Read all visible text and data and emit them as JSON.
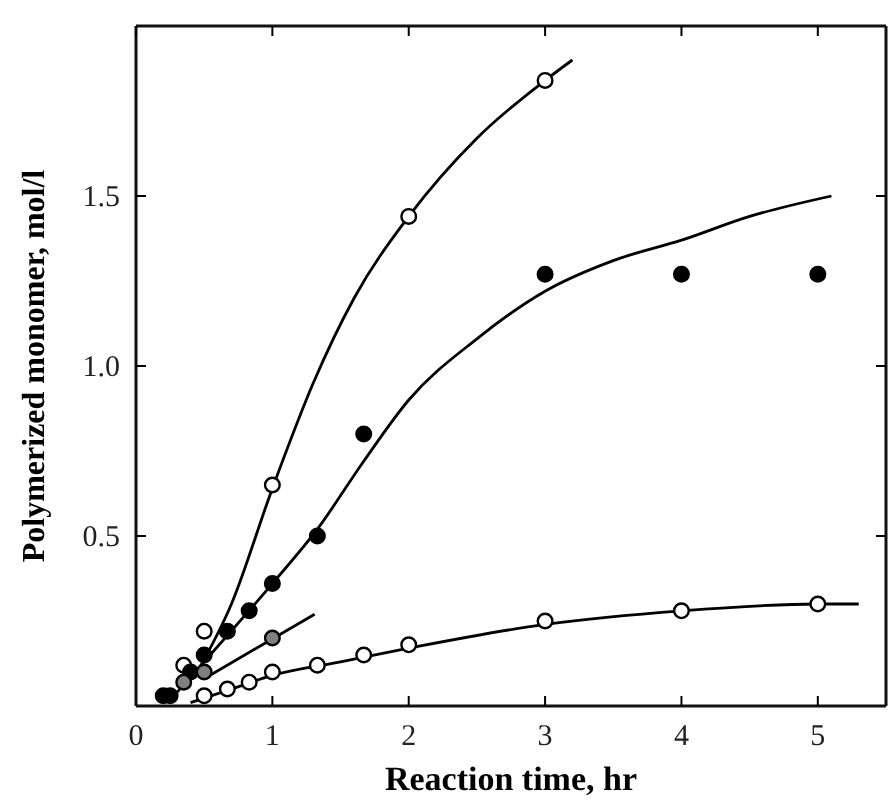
{
  "chart_data": {
    "type": "scatter",
    "xlabel": "Reaction time, hr",
    "ylabel": "Polymerized monomer, mol/l",
    "xlim": [
      0,
      5.5
    ],
    "ylim": [
      0,
      2.0
    ],
    "xticks": [
      0,
      1,
      2,
      3,
      4,
      5
    ],
    "yticks": [
      {
        "value": 0.5,
        "label": "0.5"
      },
      {
        "value": 1.0,
        "label": "1.0"
      },
      {
        "value": 1.5,
        "label": "1.5"
      }
    ],
    "marker": "circle",
    "grid": false,
    "series": [
      {
        "type": "line",
        "marker": "none",
        "color": "#000000",
        "x": [
          0.45,
          0.7,
          1,
          1.3,
          1.6,
          2,
          2.5,
          3,
          3.2
        ],
        "values": [
          0.1,
          0.3,
          0.64,
          0.95,
          1.2,
          1.44,
          1.67,
          1.84,
          1.9
        ]
      },
      {
        "type": "line",
        "marker": "none",
        "color": "#000000",
        "x": [
          0.3,
          0.5,
          1,
          1.33,
          1.67,
          2,
          2.5,
          3,
          3.5,
          4,
          4.5,
          5.1
        ],
        "values": [
          0.04,
          0.13,
          0.36,
          0.52,
          0.72,
          0.9,
          1.08,
          1.22,
          1.31,
          1.37,
          1.44,
          1.5
        ]
      },
      {
        "type": "line",
        "marker": "none",
        "color": "#000000",
        "x": [
          0.5,
          1.31
        ],
        "values": [
          0.08,
          0.27
        ]
      },
      {
        "type": "line",
        "marker": "none",
        "color": "#000000",
        "x": [
          0.4,
          0.7,
          1,
          1.5,
          2,
          3,
          4,
          5,
          5.3
        ],
        "values": [
          0.01,
          0.05,
          0.09,
          0.13,
          0.17,
          0.24,
          0.28,
          0.3,
          0.3
        ]
      },
      {
        "color": "#ffffff",
        "x": [
          0.35,
          0.5,
          1,
          2,
          3
        ],
        "values": [
          0.12,
          0.22,
          0.65,
          1.44,
          1.84
        ]
      },
      {
        "color": "#000000",
        "x": [
          0.2,
          0.25,
          0.4,
          0.5,
          0.67,
          0.83,
          1,
          1.33,
          1.67,
          3,
          4,
          5
        ],
        "values": [
          0.03,
          0.03,
          0.1,
          0.15,
          0.22,
          0.28,
          0.36,
          0.5,
          0.8,
          1.27,
          1.27,
          1.27
        ]
      },
      {
        "color": "#808080",
        "x": [
          0.35,
          0.5,
          1
        ],
        "values": [
          0.07,
          0.1,
          0.2
        ]
      },
      {
        "color": "#ffffff",
        "x": [
          0.5,
          0.67,
          0.83,
          1,
          1.33,
          1.67,
          2,
          3,
          4,
          5
        ],
        "values": [
          0.03,
          0.05,
          0.07,
          0.1,
          0.12,
          0.15,
          0.18,
          0.25,
          0.28,
          0.3
        ]
      }
    ]
  }
}
